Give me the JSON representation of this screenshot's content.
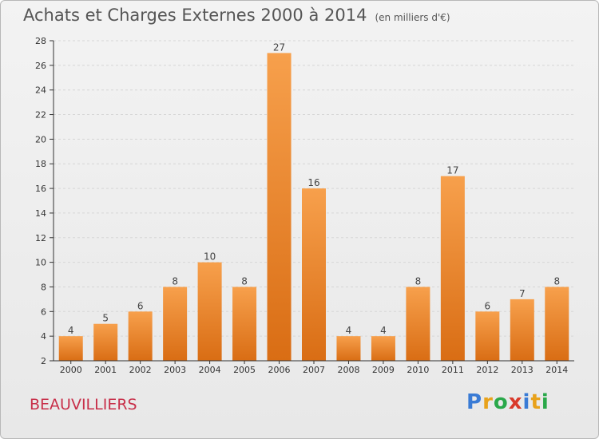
{
  "header": {
    "title": "Achats et Charges Externes 2000 à 2014",
    "unit": "(en milliers d'€)"
  },
  "footer": {
    "commune": "BEAUVILLIERS",
    "logo_letters": [
      "P",
      "r",
      "o",
      "x",
      "i",
      "t",
      "i"
    ],
    "logo_colors": [
      "#3a7bd5",
      "#e8a21b",
      "#2aa84a",
      "#d93a2b",
      "#3a7bd5",
      "#e8a21b",
      "#2aa84a"
    ]
  },
  "colors": {
    "bar_light": "#f7a04c",
    "bar_dark": "#d96d14",
    "grid": "#d6d6d6",
    "axis": "#333333"
  },
  "chart_data": {
    "type": "bar",
    "title": "Achats et Charges Externes 2000 à 2014",
    "subtitle": "(en milliers d'€)",
    "xlabel": "",
    "ylabel": "",
    "categories": [
      "2000",
      "2001",
      "2002",
      "2003",
      "2004",
      "2005",
      "2006",
      "2007",
      "2008",
      "2009",
      "2010",
      "2011",
      "2012",
      "2013",
      "2014"
    ],
    "values": [
      4,
      5,
      6,
      8,
      10,
      8,
      27,
      16,
      4,
      4,
      8,
      17,
      6,
      7,
      8
    ],
    "ylim": [
      2,
      28
    ],
    "yticks": [
      2,
      4,
      6,
      8,
      10,
      12,
      14,
      16,
      18,
      20,
      22,
      24,
      26,
      28
    ],
    "grid": "horizontal dashed",
    "legend": "none"
  }
}
